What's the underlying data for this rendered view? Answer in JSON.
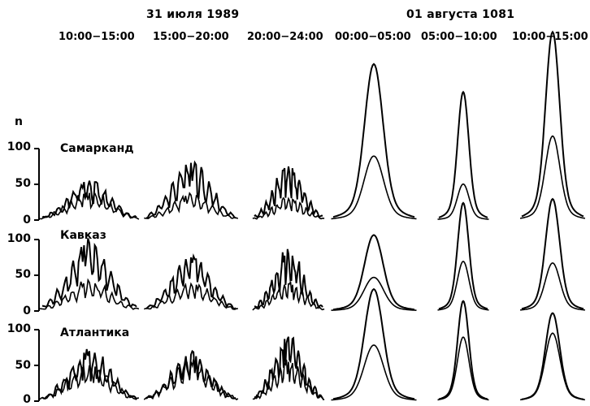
{
  "chart_data": {
    "type": "line",
    "dates": [
      "31 июля 1989",
      "01 августа 1081"
    ],
    "time_ranges": [
      "10:00−15:00",
      "15:00−20:00",
      "20:00−24:00",
      "00:00−05:00",
      "05:00−10:00",
      "10:00−15:00"
    ],
    "ylabel": "n",
    "yticks": [
      0,
      50,
      100
    ],
    "ylim": [
      0,
      100
    ],
    "stations": [
      "Самарканд",
      "Кавказ",
      "Атлантика"
    ],
    "peaks": [
      [
        {
          "upper": 55,
          "lower": 38
        },
        {
          "upper": 80,
          "lower": 35
        },
        {
          "upper": 75,
          "lower": 30
        },
        {
          "upper": 195,
          "lower": 80
        },
        {
          "upper": 160,
          "lower": 45
        },
        {
          "upper": 235,
          "lower": 105
        }
      ],
      [
        {
          "upper": 95,
          "lower": 40
        },
        {
          "upper": 75,
          "lower": 38
        },
        {
          "upper": 80,
          "lower": 38
        },
        {
          "upper": 95,
          "lower": 42
        },
        {
          "upper": 135,
          "lower": 62
        },
        {
          "upper": 140,
          "lower": 60
        }
      ],
      [
        {
          "upper": 70,
          "lower": 50
        },
        {
          "upper": 65,
          "lower": 55
        },
        {
          "upper": 90,
          "lower": 55
        },
        {
          "upper": 140,
          "lower": 70
        },
        {
          "upper": 125,
          "lower": 80
        },
        {
          "upper": 110,
          "lower": 85
        }
      ]
    ]
  }
}
